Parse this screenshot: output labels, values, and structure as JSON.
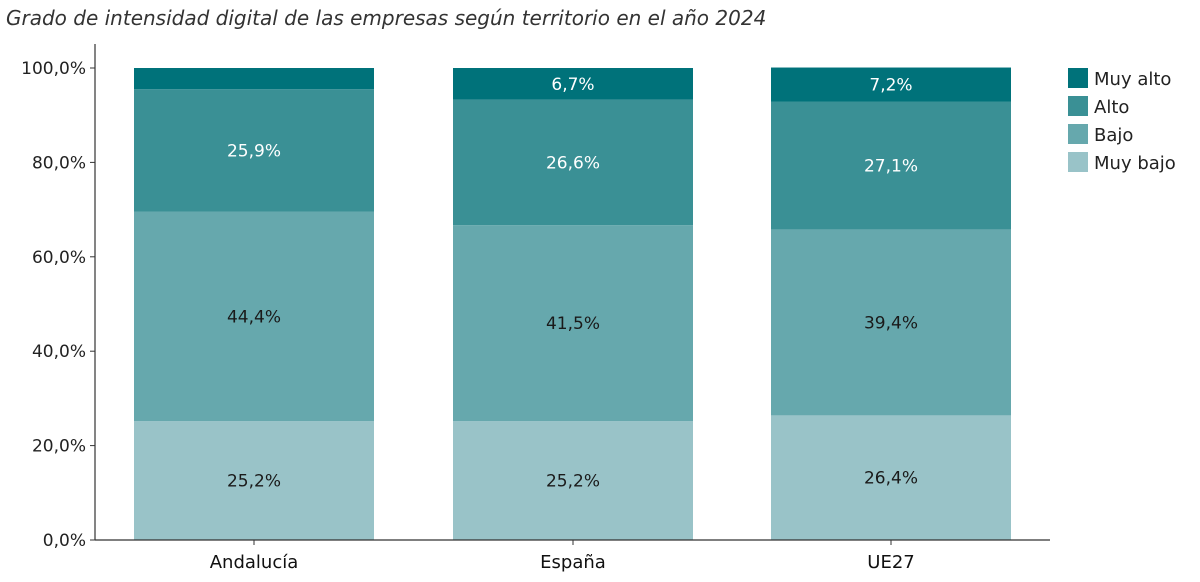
{
  "chart_data": {
    "type": "bar",
    "stacked": true,
    "title": "Grado de intensidad digital de las empresas según territorio en el año 2024",
    "xlabel": "",
    "ylabel": "",
    "categories": [
      "Andalucía",
      "España",
      "UE27"
    ],
    "ylim": [
      0,
      100
    ],
    "yticks": [
      0,
      20,
      40,
      60,
      80,
      100
    ],
    "ytick_labels": [
      "0,0%",
      "20,0%",
      "40,0%",
      "60,0%",
      "80,0%",
      "100,0%"
    ],
    "grid": false,
    "legend": "right",
    "series": [
      {
        "name": "Muy bajo",
        "values": [
          25.2,
          25.2,
          26.4
        ],
        "labels": [
          "25,2%",
          "25,2%",
          "26,4%"
        ],
        "color": "#99c3c8",
        "label_color": "#1a1a1a"
      },
      {
        "name": "Bajo",
        "values": [
          44.4,
          41.5,
          39.4
        ],
        "labels": [
          "44,4%",
          "41,5%",
          "39,4%"
        ],
        "color": "#66a8ad",
        "label_color": "#1a1a1a"
      },
      {
        "name": "Alto",
        "values": [
          25.9,
          26.6,
          27.1
        ],
        "labels": [
          "25,9%",
          "26,6%",
          "27,1%"
        ],
        "color": "#3a9095",
        "label_color": "#ffffff"
      },
      {
        "name": "Muy alto",
        "values": [
          4.5,
          6.7,
          7.2
        ],
        "labels": [
          "",
          "6,7%",
          "7,2%"
        ],
        "color": "#00727a",
        "label_color": "#ffffff"
      }
    ],
    "legend_order": [
      "Muy alto",
      "Alto",
      "Bajo",
      "Muy bajo"
    ]
  }
}
